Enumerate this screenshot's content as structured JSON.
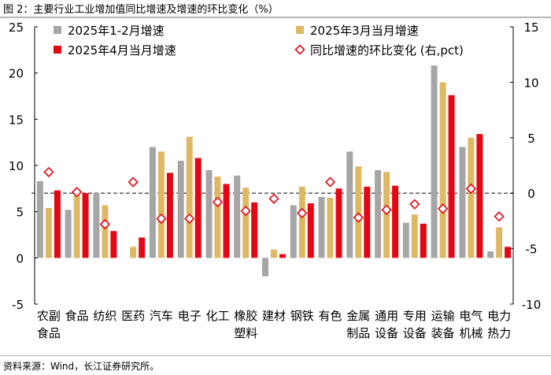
{
  "figure": {
    "title": "图 2：主要行业工业增加值同比增速及增速的环比变化（%）",
    "source": "资料来源：Wind，长江证券研究所。"
  },
  "chart_data": {
    "type": "bar",
    "categories": [
      [
        "农副",
        "食品"
      ],
      [
        "食品"
      ],
      [
        "纺织"
      ],
      [
        "医药"
      ],
      [
        "汽车"
      ],
      [
        "电子"
      ],
      [
        "化工"
      ],
      [
        "橡胶",
        "塑料"
      ],
      [
        "建材"
      ],
      [
        "钢铁"
      ],
      [
        "有色"
      ],
      [
        "金属",
        "制品"
      ],
      [
        "通用",
        "设备"
      ],
      [
        "专用",
        "设备"
      ],
      [
        "运输",
        "装备"
      ],
      [
        "电气",
        "机械"
      ],
      [
        "电力",
        "热力"
      ]
    ],
    "series": [
      {
        "name": "2025年1-2月增速",
        "axis": "left",
        "color": "#a6a6a6",
        "values": [
          8.3,
          5.2,
          7.0,
          0.0,
          12.0,
          10.5,
          9.5,
          8.9,
          -2.0,
          5.7,
          6.6,
          11.5,
          9.5,
          3.8,
          20.8,
          12.0,
          0.7
        ]
      },
      {
        "name": "2025年3月当月增速",
        "axis": "left",
        "color": "#dfb865",
        "values": [
          5.4,
          6.9,
          5.7,
          1.2,
          11.5,
          13.1,
          8.8,
          7.6,
          0.9,
          7.7,
          6.5,
          9.9,
          9.3,
          4.7,
          19.0,
          13.0,
          3.3
        ]
      },
      {
        "name": "2025年4月当月增速",
        "axis": "left",
        "color": "#e30613",
        "values": [
          7.3,
          7.0,
          2.9,
          2.2,
          9.2,
          10.8,
          8.0,
          6.0,
          0.4,
          5.9,
          7.5,
          7.7,
          7.8,
          3.7,
          17.6,
          13.4,
          1.2
        ]
      },
      {
        "name": "同比增速的环比变化 (右,pct)",
        "axis": "right",
        "type": "scatter",
        "marker": "diamond",
        "color": "#e30613",
        "values": [
          1.9,
          0.1,
          -2.8,
          1.0,
          -2.3,
          -2.3,
          -0.8,
          -1.6,
          -0.5,
          -1.8,
          1.0,
          -2.2,
          -1.5,
          -1.0,
          -1.4,
          0.4,
          -2.1
        ]
      }
    ],
    "left_axis": {
      "min": -5,
      "max": 25,
      "ticks": [
        -5,
        0,
        5,
        10,
        15,
        20,
        25
      ]
    },
    "right_axis": {
      "min": -10,
      "max": 15,
      "ticks": [
        -10,
        -5,
        0,
        5,
        10,
        15
      ]
    },
    "reference_line": {
      "axis": "right",
      "value": 0,
      "style": "dashed",
      "color": "#595959"
    },
    "legend": {
      "position": "top",
      "columns": 2
    }
  }
}
